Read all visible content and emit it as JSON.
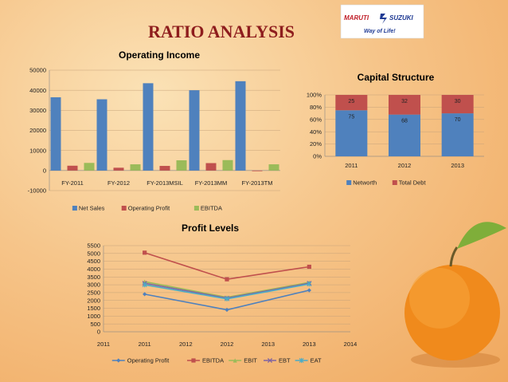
{
  "slide": {
    "title": "RATIO ANALYSIS",
    "logo": {
      "brand_left": "MARUTI",
      "brand_right": "SUZUKI",
      "tagline": "Way of Life!"
    }
  },
  "chart_data": [
    {
      "id": "operating-income",
      "type": "bar",
      "title": "Operating Income",
      "categories": [
        "FY-2011",
        "FY-2012",
        "FY-2013MSIL",
        "FY-2013MM",
        "FY-2013TM"
      ],
      "series": [
        {
          "name": "Net Sales",
          "color": "#4f81bd",
          "values": [
            36500,
            35500,
            43500,
            40000,
            44500
          ]
        },
        {
          "name": "Operating Profit",
          "color": "#c0504d",
          "values": [
            2400,
            1400,
            2300,
            3700,
            -300
          ]
        },
        {
          "name": "EBITDA",
          "color": "#9bbb59",
          "values": [
            3800,
            3100,
            5100,
            5200,
            3100
          ]
        }
      ],
      "yticks": [
        "-10000",
        "0",
        "10000",
        "20000",
        "30000",
        "40000",
        "50000"
      ],
      "ylim": [
        -10000,
        50000
      ],
      "grid": true,
      "legend": "bottom"
    },
    {
      "id": "capital-structure",
      "type": "bar",
      "stacked": true,
      "title": "Capital Structure",
      "categories": [
        "2011",
        "2012",
        "2013"
      ],
      "series": [
        {
          "name": "Networth",
          "color": "#4f81bd",
          "values": [
            75,
            68,
            70
          ],
          "labels": [
            "75",
            "68",
            "70"
          ]
        },
        {
          "name": "Total Debt",
          "color": "#c0504d",
          "values": [
            25,
            32,
            30
          ],
          "labels": [
            "25",
            "32",
            "30"
          ]
        }
      ],
      "yticks": [
        "0%",
        "20%",
        "40%",
        "60%",
        "80%",
        "100%"
      ],
      "ylim": [
        0,
        100
      ],
      "grid": true,
      "legend": "bottom"
    },
    {
      "id": "profit-levels",
      "type": "line",
      "title": "Profit Levels",
      "x": [
        2011,
        2012,
        2013
      ],
      "xticks": [
        "2011",
        "2011",
        "2012",
        "2012",
        "2013",
        "2013",
        "2014"
      ],
      "series": [
        {
          "name": "Operating Profit",
          "color": "#4f81bd",
          "marker": "diamond",
          "values": [
            2400,
            1400,
            2650
          ]
        },
        {
          "name": "EBITDA",
          "color": "#c0504d",
          "marker": "square",
          "values": [
            5050,
            3350,
            4150
          ]
        },
        {
          "name": "EBIT",
          "color": "#9bbb59",
          "marker": "triangle",
          "values": [
            3200,
            2200,
            3150
          ]
        },
        {
          "name": "EBT",
          "color": "#8064a2",
          "marker": "x",
          "values": [
            3100,
            2150,
            3100
          ]
        },
        {
          "name": "EAT",
          "color": "#4bacc6",
          "marker": "star",
          "values": [
            3000,
            2100,
            3050
          ]
        }
      ],
      "yticks": [
        "0",
        "500",
        "1000",
        "1500",
        "2000",
        "2500",
        "3000",
        "3500",
        "4000",
        "4500",
        "5000",
        "5500"
      ],
      "ylim": [
        0,
        5500
      ],
      "grid": true,
      "legend": "bottom"
    }
  ]
}
